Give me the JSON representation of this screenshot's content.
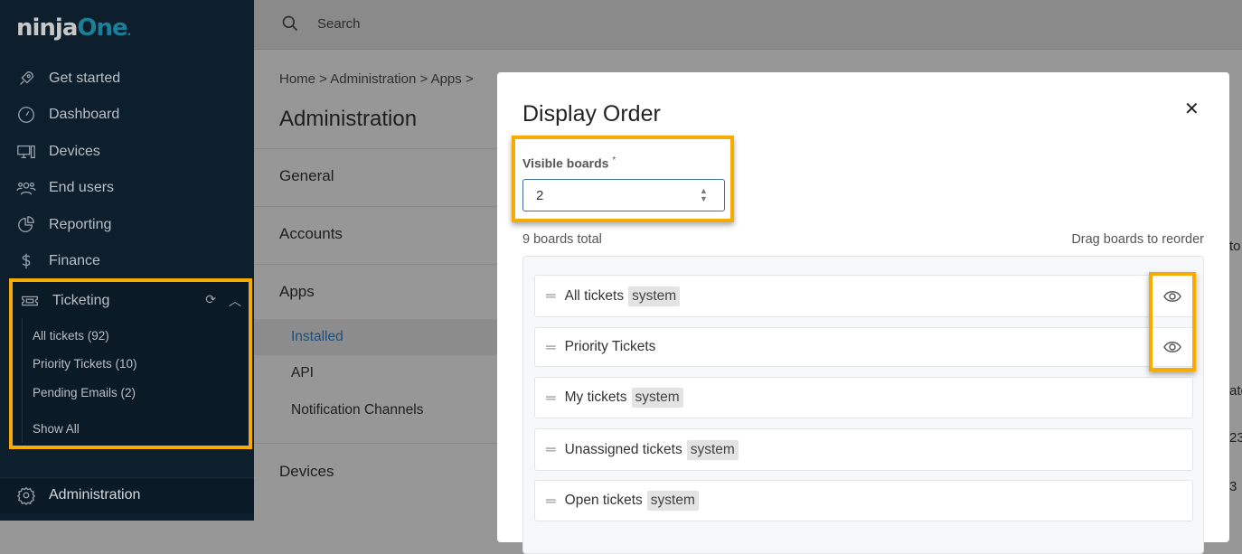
{
  "app": {
    "logo_part1": "ninja",
    "logo_part2": "One",
    "logo_mark": "."
  },
  "sidebar": {
    "items": [
      {
        "label": "Get started",
        "icon": "rocket-icon"
      },
      {
        "label": "Dashboard",
        "icon": "gauge-icon"
      },
      {
        "label": "Devices",
        "icon": "devices-icon"
      },
      {
        "label": "End users",
        "icon": "users-icon"
      },
      {
        "label": "Reporting",
        "icon": "pie-chart-icon"
      },
      {
        "label": "Finance",
        "icon": "dollar-icon"
      }
    ],
    "ticketing": {
      "label": "Ticketing",
      "sub": [
        "All tickets (92)",
        "Priority Tickets (10)",
        "Pending Emails (2)",
        "Show All"
      ]
    },
    "admin": "Administration"
  },
  "header": {
    "search_placeholder": "Search"
  },
  "main": {
    "breadcrumb": "Home > Administration > Apps >",
    "title": "Administration",
    "sections": [
      "General",
      "Accounts",
      "Apps"
    ],
    "apps_items": [
      "Installed",
      "API",
      "Notification Channels"
    ],
    "devices": "Devices",
    "fragments": [
      "to",
      "ate",
      "23",
      "3"
    ]
  },
  "modal": {
    "title": "Display Order",
    "visible_label": "Visible boards",
    "required": "*",
    "visible_value": "2",
    "total": "9 boards total",
    "drag_hint": "Drag boards to reorder",
    "boards": [
      {
        "name": "All tickets",
        "badge": "system",
        "visible": true
      },
      {
        "name": "Priority Tickets",
        "badge": "",
        "visible": true
      },
      {
        "name": "My tickets",
        "badge": "system",
        "visible": false
      },
      {
        "name": "Unassigned tickets",
        "badge": "system",
        "visible": false
      },
      {
        "name": "Open tickets",
        "badge": "system",
        "visible": false
      }
    ]
  },
  "colors": {
    "highlight": "#f6ab00",
    "sidebar": "#0d1f2d",
    "brand": "#1b7f98"
  }
}
